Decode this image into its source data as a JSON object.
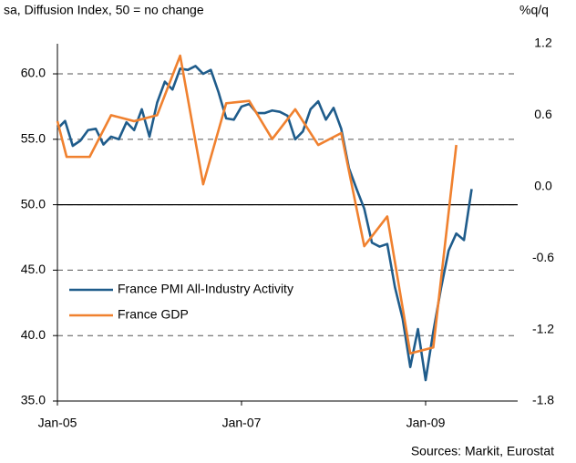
{
  "chart_data": {
    "type": "line",
    "subtitle": "sa, Diffusion Index, 50 = no change",
    "y2_label": "%q/q",
    "source": "Sources: Markit, Eurostat",
    "xlim": [
      0,
      60
    ],
    "xticks": [
      {
        "value": 0,
        "label": "Jan-05"
      },
      {
        "value": 24,
        "label": "Jan-07"
      },
      {
        "value": 48,
        "label": "Jan-09"
      }
    ],
    "ylim": [
      35,
      62.3
    ],
    "yticks": [
      {
        "value": 35,
        "label": "35.0"
      },
      {
        "value": 40,
        "label": "40.0"
      },
      {
        "value": 45,
        "label": "45.0"
      },
      {
        "value": 50,
        "label": "50.0"
      },
      {
        "value": 55,
        "label": "55.0"
      },
      {
        "value": 60,
        "label": "60.0"
      }
    ],
    "y2lim": [
      -1.8,
      1.2
    ],
    "y2ticks": [
      1.2,
      0.6,
      {
        "value": 0,
        "label": "0.0"
      },
      -0.6,
      -1.2,
      -1.8
    ],
    "grid": true,
    "reference_line": 50,
    "legend": "left",
    "series": [
      {
        "name": "France PMI All-Industry Activity",
        "color": "#1f5c8b",
        "x": [
          0,
          1,
          2,
          3,
          4,
          5,
          6,
          7,
          8,
          9,
          10,
          11,
          12,
          13,
          14,
          15,
          16,
          17,
          18,
          19,
          20,
          21,
          22,
          23,
          24,
          25,
          26,
          27,
          28,
          29,
          30,
          31,
          32,
          33,
          34,
          35,
          36,
          37,
          38,
          39,
          40,
          41,
          42,
          43,
          44,
          45,
          46,
          47,
          48,
          49,
          50,
          51,
          52,
          53,
          54
        ],
        "values": [
          55.8,
          56.4,
          54.5,
          54.9,
          55.7,
          55.8,
          54.6,
          55.2,
          55.0,
          56.3,
          55.7,
          57.3,
          55.2,
          57.8,
          59.4,
          58.8,
          60.4,
          60.3,
          60.6,
          60.0,
          60.3,
          58.6,
          56.6,
          56.5,
          57.5,
          57.7,
          57.0,
          57.0,
          57.2,
          57.1,
          56.8,
          55.0,
          55.6,
          57.3,
          57.9,
          56.5,
          57.4,
          55.8,
          52.8,
          51.2,
          49.7,
          47.1,
          46.8,
          47.0,
          43.7,
          41.3,
          37.6,
          40.5,
          36.6,
          40.3,
          43.6,
          46.5,
          47.8,
          47.3,
          51.2
        ]
      },
      {
        "name": "France GDP",
        "color": "#f0812f",
        "axis": "y2",
        "x": [
          0,
          1.2,
          4.2,
          7,
          10,
          13,
          16,
          19,
          22,
          25,
          28,
          31,
          34,
          37,
          40,
          43,
          46,
          49,
          52
        ],
        "values": [
          0.55,
          0.25,
          0.25,
          0.6,
          0.55,
          0.6,
          1.1,
          0.02,
          0.7,
          0.72,
          0.4,
          0.65,
          0.35,
          0.45,
          -0.5,
          -0.25,
          -1.4,
          -1.35,
          0.35
        ]
      }
    ]
  }
}
